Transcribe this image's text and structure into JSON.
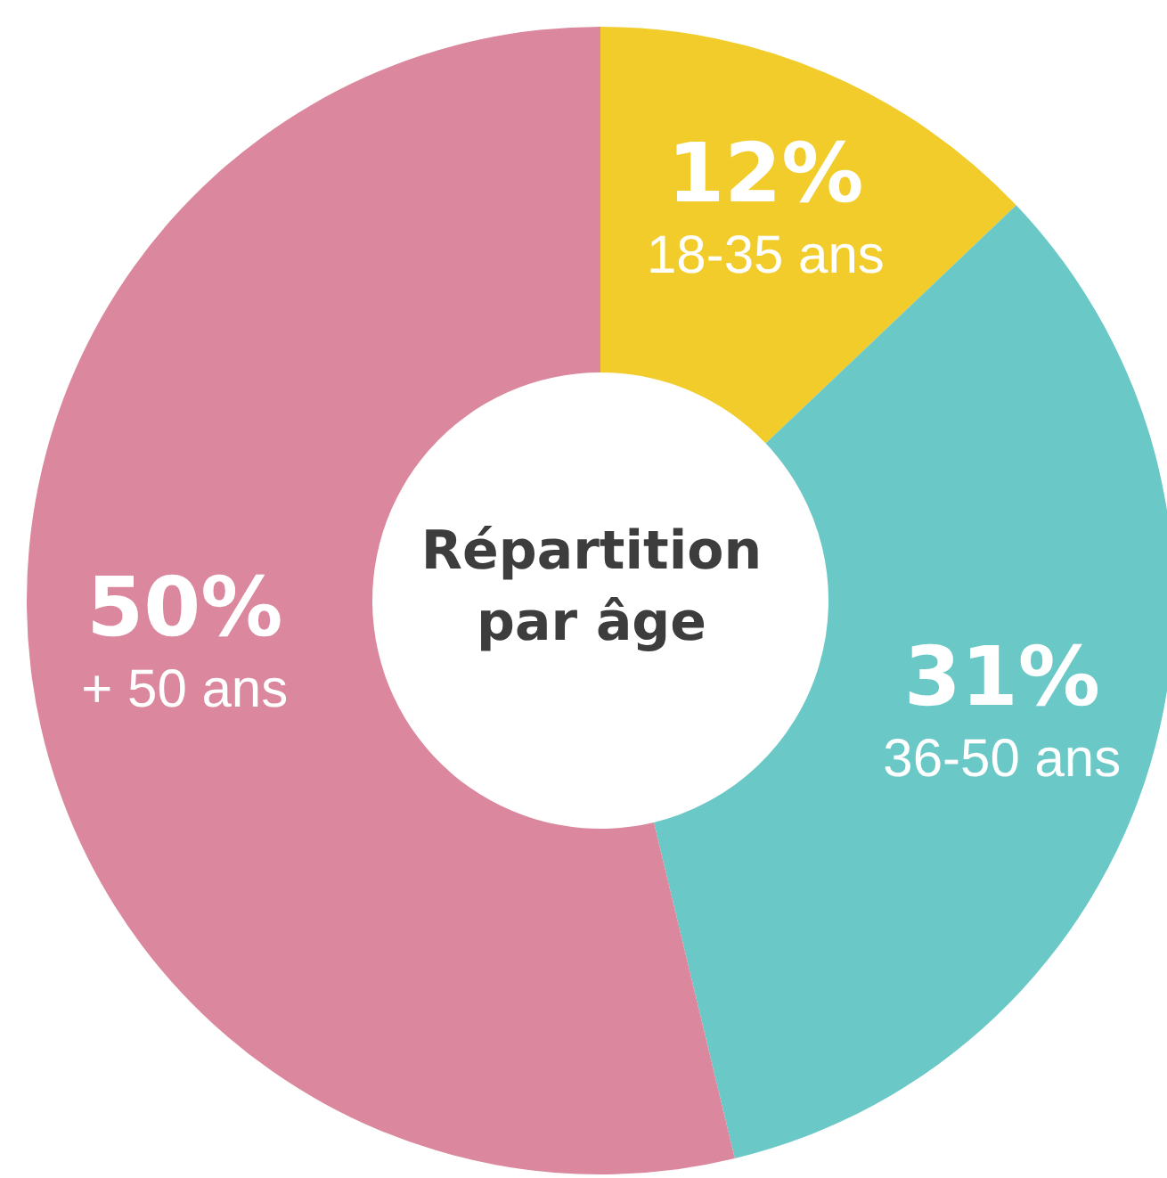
{
  "chart_data": {
    "type": "donut",
    "title": "Répartition par âge",
    "categories": [
      "18-35 ans",
      "36-50 ans",
      "+ 50 ans"
    ],
    "values": [
      12,
      31,
      50
    ],
    "value_labels": [
      "12%",
      "31%",
      "50%"
    ],
    "colors": [
      "#f2cc2a",
      "#6ac8c6",
      "#db889e"
    ]
  }
}
